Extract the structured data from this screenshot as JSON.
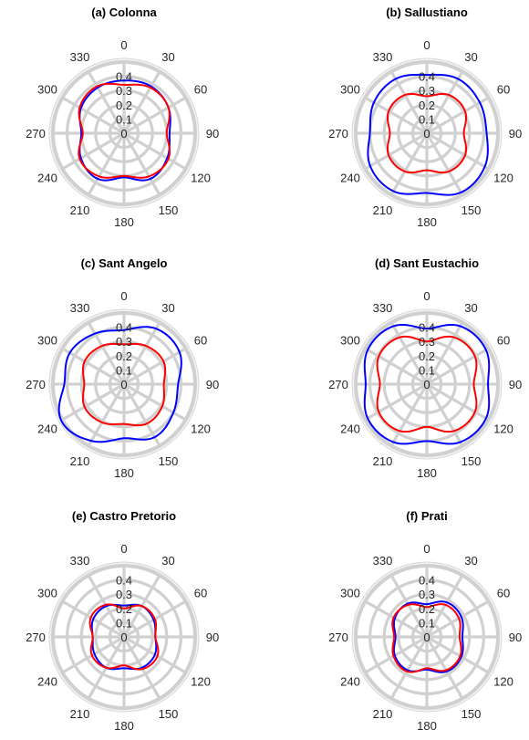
{
  "chart_data": [
    {
      "type": "polar",
      "title": "(a) Colonna",
      "theta_ticks": [
        "0",
        "30",
        "60",
        "90",
        "120",
        "150",
        "180",
        "210",
        "240",
        "270",
        "300",
        "330"
      ],
      "r_ticks": [
        "0",
        "0.1",
        "0.2",
        "0.3",
        "0.4"
      ],
      "rlim": [
        0,
        0.5
      ],
      "theta_zero": "top",
      "theta_direction": "clockwise",
      "grid": true,
      "series": [
        {
          "color": "#0000ff",
          "theta": [
            0,
            30,
            60,
            90,
            120,
            150,
            180,
            210,
            240,
            270,
            300,
            330,
            360
          ],
          "r": [
            0.37,
            0.38,
            0.36,
            0.32,
            0.35,
            0.37,
            0.31,
            0.37,
            0.35,
            0.3,
            0.35,
            0.37,
            0.37
          ]
        },
        {
          "color": "#ff0000",
          "theta": [
            0,
            30,
            60,
            90,
            120,
            150,
            180,
            210,
            240,
            270,
            300,
            330,
            360
          ],
          "r": [
            0.34,
            0.37,
            0.36,
            0.3,
            0.36,
            0.35,
            0.3,
            0.35,
            0.36,
            0.29,
            0.36,
            0.38,
            0.34
          ]
        }
      ]
    },
    {
      "type": "polar",
      "title": "(b) Sallustiano",
      "theta_ticks": [
        "0",
        "30",
        "60",
        "90",
        "120",
        "150",
        "180",
        "210",
        "240",
        "270",
        "300",
        "330"
      ],
      "r_ticks": [
        "0",
        "0.1",
        "0.2",
        "0.3",
        "0.4"
      ],
      "rlim": [
        0,
        0.5
      ],
      "theta_zero": "top",
      "theta_direction": "clockwise",
      "grid": true,
      "series": [
        {
          "color": "#0000ff",
          "theta": [
            0,
            30,
            60,
            90,
            120,
            150,
            180,
            210,
            240,
            270,
            300,
            330,
            360
          ],
          "r": [
            0.41,
            0.44,
            0.43,
            0.42,
            0.47,
            0.48,
            0.42,
            0.47,
            0.46,
            0.4,
            0.43,
            0.44,
            0.41
          ]
        },
        {
          "color": "#ff0000",
          "theta": [
            0,
            30,
            60,
            90,
            120,
            150,
            180,
            210,
            240,
            270,
            300,
            330,
            360
          ],
          "r": [
            0.26,
            0.31,
            0.31,
            0.26,
            0.31,
            0.31,
            0.26,
            0.31,
            0.31,
            0.26,
            0.31,
            0.31,
            0.26
          ]
        }
      ]
    },
    {
      "type": "polar",
      "title": "(c) Sant Angelo",
      "theta_ticks": [
        "0",
        "30",
        "60",
        "90",
        "120",
        "150",
        "180",
        "210",
        "240",
        "270",
        "300",
        "330"
      ],
      "r_ticks": [
        "0",
        "0.1",
        "0.2",
        "0.3",
        "0.4"
      ],
      "rlim": [
        0,
        0.5
      ],
      "theta_zero": "top",
      "theta_direction": "clockwise",
      "grid": true,
      "series": [
        {
          "color": "#0000ff",
          "theta": [
            0,
            30,
            60,
            90,
            120,
            150,
            180,
            210,
            240,
            270,
            300,
            330,
            360
          ],
          "r": [
            0.38,
            0.45,
            0.45,
            0.38,
            0.4,
            0.43,
            0.38,
            0.46,
            0.51,
            0.42,
            0.44,
            0.41,
            0.38
          ]
        },
        {
          "color": "#ff0000",
          "theta": [
            0,
            30,
            60,
            90,
            120,
            150,
            180,
            210,
            240,
            270,
            300,
            330,
            360
          ],
          "r": [
            0.28,
            0.31,
            0.32,
            0.28,
            0.31,
            0.32,
            0.28,
            0.31,
            0.32,
            0.28,
            0.32,
            0.31,
            0.28
          ]
        }
      ]
    },
    {
      "type": "polar",
      "title": "(d) Sant Eustachio",
      "theta_ticks": [
        "0",
        "30",
        "60",
        "90",
        "120",
        "150",
        "180",
        "210",
        "240",
        "270",
        "300",
        "330"
      ],
      "r_ticks": [
        "0",
        "0.1",
        "0.2",
        "0.3",
        "0.4"
      ],
      "rlim": [
        0,
        0.5
      ],
      "theta_zero": "top",
      "theta_direction": "clockwise",
      "grid": true,
      "series": [
        {
          "color": "#0000ff",
          "theta": [
            0,
            30,
            60,
            90,
            120,
            150,
            180,
            210,
            240,
            270,
            300,
            330,
            360
          ],
          "r": [
            0.39,
            0.47,
            0.48,
            0.43,
            0.48,
            0.47,
            0.4,
            0.47,
            0.48,
            0.43,
            0.48,
            0.47,
            0.39
          ]
        },
        {
          "color": "#ff0000",
          "theta": [
            0,
            30,
            60,
            90,
            120,
            150,
            180,
            210,
            240,
            270,
            300,
            330,
            360
          ],
          "r": [
            0.3,
            0.38,
            0.39,
            0.33,
            0.39,
            0.38,
            0.3,
            0.38,
            0.39,
            0.33,
            0.39,
            0.38,
            0.3
          ]
        }
      ]
    },
    {
      "type": "polar",
      "title": "(e) Castro Pretorio",
      "theta_ticks": [
        "0",
        "30",
        "60",
        "90",
        "120",
        "150",
        "180",
        "210",
        "240",
        "270",
        "300",
        "330"
      ],
      "r_ticks": [
        "0",
        "0.1",
        "0.2",
        "0.3",
        "0.4"
      ],
      "rlim": [
        0,
        0.5
      ],
      "theta_zero": "top",
      "theta_direction": "clockwise",
      "grid": true,
      "series": [
        {
          "color": "#0000ff",
          "theta": [
            0,
            30,
            60,
            90,
            120,
            150,
            180,
            210,
            240,
            270,
            300,
            330,
            360
          ],
          "r": [
            0.22,
            0.25,
            0.24,
            0.22,
            0.25,
            0.25,
            0.22,
            0.25,
            0.24,
            0.22,
            0.25,
            0.25,
            0.22
          ]
        },
        {
          "color": "#ff0000",
          "theta": [
            0,
            30,
            60,
            90,
            120,
            150,
            180,
            210,
            240,
            270,
            300,
            330,
            360
          ],
          "r": [
            0.2,
            0.25,
            0.25,
            0.22,
            0.27,
            0.26,
            0.2,
            0.25,
            0.26,
            0.22,
            0.27,
            0.26,
            0.2
          ]
        }
      ]
    },
    {
      "type": "polar",
      "title": "(f) Prati",
      "theta_ticks": [
        "0",
        "30",
        "60",
        "90",
        "120",
        "150",
        "180",
        "210",
        "240",
        "270",
        "300",
        "330"
      ],
      "r_ticks": [
        "0",
        "0.1",
        "0.2",
        "0.3",
        "0.4"
      ],
      "rlim": [
        0,
        0.5
      ],
      "theta_zero": "top",
      "theta_direction": "clockwise",
      "grid": true,
      "series": [
        {
          "color": "#0000ff",
          "theta": [
            0,
            30,
            60,
            90,
            120,
            150,
            180,
            210,
            240,
            270,
            300,
            330,
            360
          ],
          "r": [
            0.23,
            0.28,
            0.28,
            0.25,
            0.28,
            0.28,
            0.23,
            0.27,
            0.26,
            0.22,
            0.26,
            0.27,
            0.23
          ]
        },
        {
          "color": "#ff0000",
          "theta": [
            0,
            30,
            60,
            90,
            120,
            150,
            180,
            210,
            240,
            270,
            300,
            330,
            360
          ],
          "r": [
            0.21,
            0.26,
            0.26,
            0.23,
            0.27,
            0.27,
            0.22,
            0.28,
            0.27,
            0.23,
            0.27,
            0.26,
            0.21
          ]
        }
      ]
    }
  ]
}
